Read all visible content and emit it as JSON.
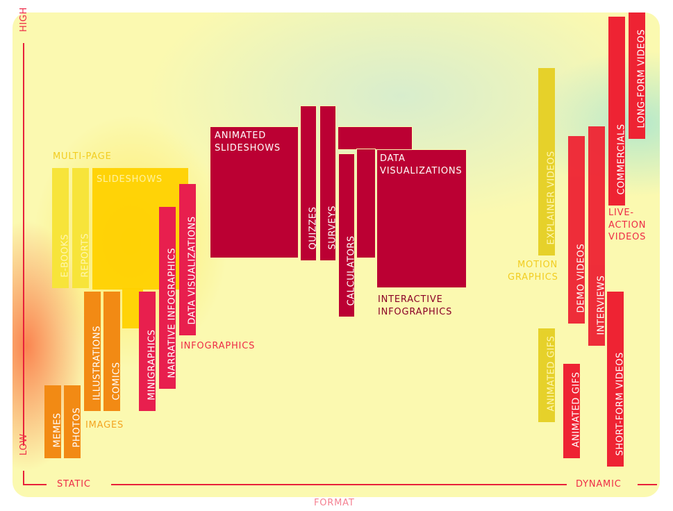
{
  "axes": {
    "y_high": "HIGH",
    "y_low": "LOW",
    "x_static": "STATIC",
    "x_dynamic": "DYNAMIC",
    "x_title": "FORMAT"
  },
  "groups": {
    "multi_page": "MULTI-PAGE",
    "slideshows": "SLIDESHOWS",
    "images": "IMAGES",
    "infographics": "INFOGRAPHICS",
    "interactive": "INTERACTIVE INFOGRAPHICS",
    "motion": "MOTION GRAPHICS",
    "live_action": "LIVE-ACTION VIDEOS"
  },
  "items": {
    "ebooks": "E-BOOKS",
    "reports": "REPORTS",
    "illustrations": "ILLUSTRATIONS",
    "comics": "COMICS",
    "memes": "MEMES",
    "photos": "PHOTOS",
    "minigraphics": "MINIGRAPHICS",
    "narrative": "NARRATIVE INFOGRAPHICS",
    "dataviz_static": "DATA VISUALIZATIONS",
    "animated_slideshows": "ANIMATED SLIDESHOWS",
    "quizzes": "QUIZZES",
    "surveys": "SURVEYS",
    "calculators": "CALCULATORS",
    "dataviz_interactive": "DATA VISUALIZATIONS",
    "explainer": "EXPLAINER VIDEOS",
    "animated_gifs_motion": "ANIMATED GIFS",
    "animated_gifs": "ANIMATED GIFS",
    "demo": "DEMO VIDEOS",
    "interviews": "INTERVIEWS",
    "commercials": "COMMERCIALS",
    "long_form": "LONG-FORM VIDEOS",
    "short_form": "SHORT-FORM VIDEOS"
  },
  "colors": {
    "axis": "#e8203a",
    "background": "#fbf9b0",
    "interactive": "#bb0033",
    "static_images": "#f28a14",
    "multi_page": "#ffd100",
    "video": "#ee2333"
  }
}
